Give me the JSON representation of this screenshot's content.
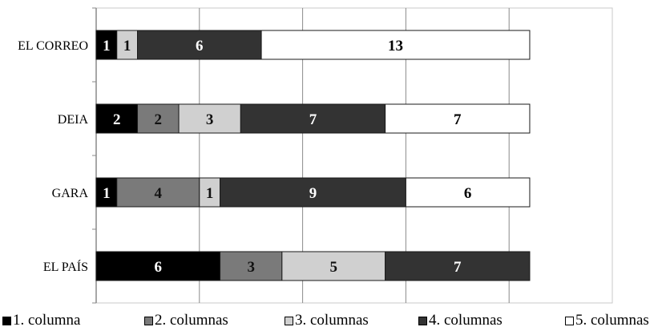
{
  "chart_data": {
    "type": "bar",
    "orientation": "horizontal",
    "stacked": true,
    "categories": [
      "EL CORREO",
      "DEIA",
      "GARA",
      "EL PAÍS"
    ],
    "series": [
      {
        "name": "1. columna",
        "color": "#000000",
        "label_color": "#ffffff",
        "values": [
          1,
          2,
          1,
          6
        ]
      },
      {
        "name": "2. columnas",
        "color": "#7a7a7a",
        "label_color": "#111111",
        "values": [
          0,
          2,
          4,
          3
        ]
      },
      {
        "name": "3. columnas",
        "color": "#d0d0d0",
        "label_color": "#111111",
        "values": [
          1,
          3,
          1,
          5
        ]
      },
      {
        "name": "4. columnas",
        "color": "#333333",
        "label_color": "#ffffff",
        "values": [
          6,
          7,
          9,
          7
        ]
      },
      {
        "name": "5. columnas",
        "color": "#ffffff",
        "label_color": "#000000",
        "values": [
          13,
          7,
          6,
          0
        ]
      }
    ],
    "xlim": [
      0,
      25
    ],
    "grid": true,
    "legend_position": "bottom"
  }
}
